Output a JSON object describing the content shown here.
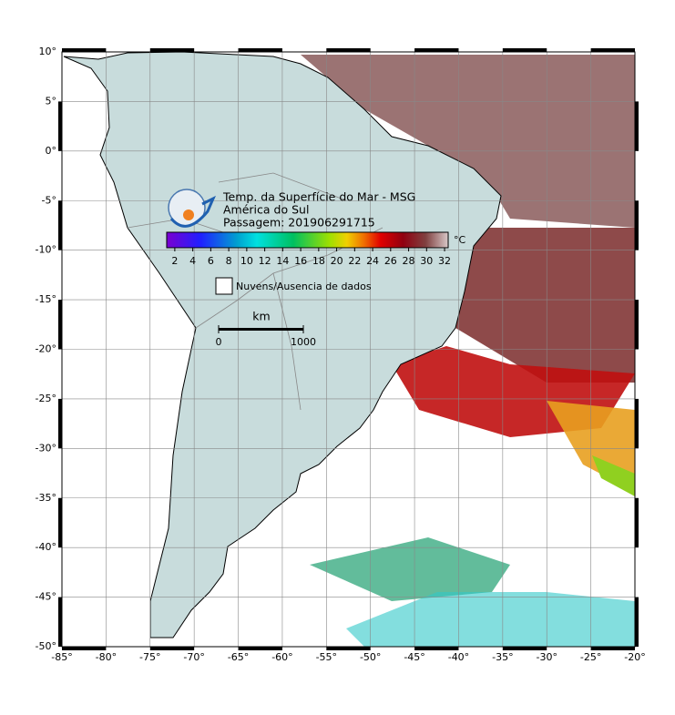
{
  "map": {
    "title_lines": [
      "Temp. da Superfície do Mar - MSG",
      "América do Sul",
      "Passagem: 201906291715"
    ],
    "lon_lim": [
      -85,
      -20
    ],
    "lat_lim": [
      -50,
      10
    ],
    "lon_ticks": [
      {
        "value": -85,
        "label": "-85°"
      },
      {
        "value": -80,
        "label": "-80°"
      },
      {
        "value": -75,
        "label": "-75°"
      },
      {
        "value": -70,
        "label": "-70°"
      },
      {
        "value": -65,
        "label": "-65°"
      },
      {
        "value": -60,
        "label": "-60°"
      },
      {
        "value": -55,
        "label": "-55°"
      },
      {
        "value": -50,
        "label": "-50°"
      },
      {
        "value": -45,
        "label": "-45°"
      },
      {
        "value": -40,
        "label": "-40°"
      },
      {
        "value": -35,
        "label": "-35°"
      },
      {
        "value": -30,
        "label": "-30°"
      },
      {
        "value": -25,
        "label": "-25°"
      },
      {
        "value": -20,
        "label": "-20°"
      }
    ],
    "lat_ticks": [
      {
        "value": 10,
        "label": "10°"
      },
      {
        "value": 5,
        "label": "5°"
      },
      {
        "value": 0,
        "label": "0°"
      },
      {
        "value": -5,
        "label": "-5°"
      },
      {
        "value": -10,
        "label": "-10°"
      },
      {
        "value": -15,
        "label": "-15°"
      },
      {
        "value": -20,
        "label": "-20°"
      },
      {
        "value": -25,
        "label": "-25°"
      },
      {
        "value": -30,
        "label": "-30°"
      },
      {
        "value": -35,
        "label": "-35°"
      },
      {
        "value": -40,
        "label": "-40°"
      },
      {
        "value": -45,
        "label": "-45°"
      },
      {
        "value": -50,
        "label": "-50°"
      }
    ],
    "colorbar": {
      "lim": [
        1.1,
        32.4
      ],
      "ticks": [
        2,
        4,
        6,
        8,
        10,
        12,
        14,
        16,
        18,
        20,
        22,
        24,
        26,
        28,
        30,
        32
      ],
      "unit": "°C"
    },
    "legend": "Nuvens/Ausencia de dados",
    "scale": {
      "unit": "km",
      "ticks": [
        0,
        1000
      ]
    }
  }
}
